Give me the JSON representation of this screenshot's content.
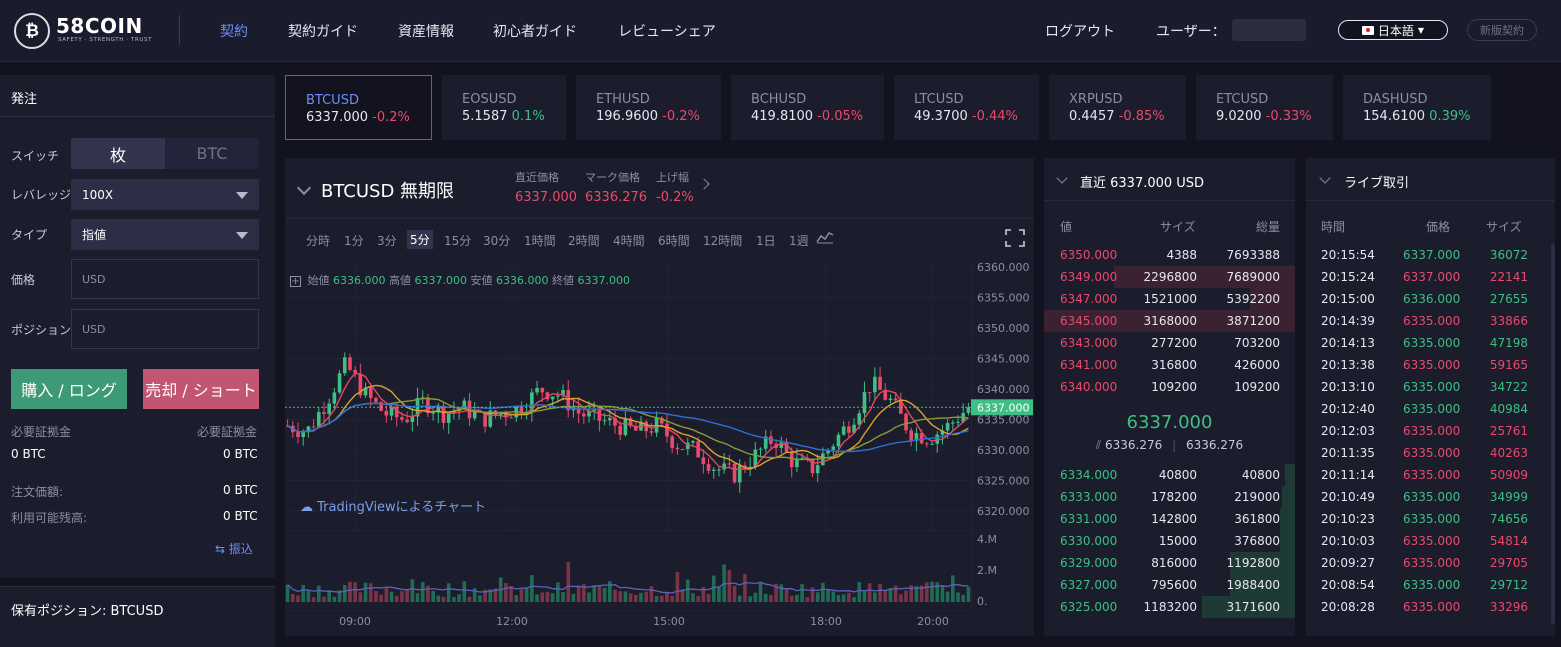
{
  "header": {
    "brand": "58COIN",
    "tagline": "SAFETY · STRENGTH · TRUST",
    "logo_glyph": "₿",
    "nav": [
      "契約",
      "契約ガイド",
      "資産情報",
      "初心者ガイド",
      "レビューシェア"
    ],
    "logout": "ログアウト",
    "user_label": "ユーザー：",
    "language": "日本語",
    "new_version": "新版契約"
  },
  "order_form": {
    "title": "発注",
    "switch_label": "スイッチ",
    "switch_options": [
      "枚",
      "BTC"
    ],
    "leverage_label": "レバレッジ",
    "leverage_value": "100X",
    "type_label": "タイプ",
    "type_value": "指値",
    "price_label": "価格",
    "price_placeholder": "USD",
    "position_label": "ポジション",
    "position_placeholder": "USD",
    "buy_label": "購入 / ロング",
    "sell_label": "売却 / ショート",
    "margin_left_label": "必要証拠金",
    "margin_right_label": "必要証拠金",
    "margin_left_value": "0 BTC",
    "margin_right_value": "0 BTC",
    "order_price_label": "注文価額:",
    "order_price_value": "0 BTC",
    "available_label": "利用可能残高:",
    "available_value": "0 BTC",
    "transfer_label": "振込"
  },
  "positions": {
    "title": "保有ポジション: BTCUSD"
  },
  "tickers": [
    {
      "symbol": "BTCUSD",
      "price": "6337.000",
      "change": "-0.2%",
      "dir": "down",
      "selected": true
    },
    {
      "symbol": "EOSUSD",
      "price": "5.1587",
      "change": "0.1%",
      "dir": "up"
    },
    {
      "symbol": "ETHUSD",
      "price": "196.9600",
      "change": "-0.2%",
      "dir": "down"
    },
    {
      "symbol": "BCHUSD",
      "price": "419.8100",
      "change": "-0.05%",
      "dir": "down"
    },
    {
      "symbol": "LTCUSD",
      "price": "49.3700",
      "change": "-0.44%",
      "dir": "down"
    },
    {
      "symbol": "XRPUSD",
      "price": "0.4457",
      "change": "-0.85%",
      "dir": "down"
    },
    {
      "symbol": "ETCUSD",
      "price": "9.0200",
      "change": "-0.33%",
      "dir": "down"
    },
    {
      "symbol": "DASHUSD",
      "price": "154.6100",
      "change": "0.39%",
      "dir": "up"
    }
  ],
  "chart_panel": {
    "title": "BTCUSD 無期限",
    "last_label": "直近価格",
    "mark_label": "マーク価格",
    "change_label": "上げ幅",
    "last_value": "6337.000",
    "mark_value": "6336.276",
    "change_value": "-0.2%",
    "timeframes": [
      "分時",
      "1分",
      "3分",
      "5分",
      "15分",
      "30分",
      "1時間",
      "2時間",
      "4時間",
      "6時間",
      "12時間",
      "1日",
      "1週"
    ],
    "selected_timeframe": "5分",
    "ohlc": {
      "open_label": "始値",
      "open": "6336.000",
      "high_label": "高値",
      "high": "6337.000",
      "low_label": "安値",
      "low": "6336.000",
      "close_label": "終値",
      "close": "6337.000"
    },
    "price_ticks": [
      "6360.000",
      "6355.000",
      "6350.000",
      "6345.000",
      "6340.000",
      "6335.000",
      "6330.000",
      "6325.000",
      "6320.000"
    ],
    "current_price_tag": "6337.000",
    "volume_ticks": [
      "4.M",
      "2.M",
      "0."
    ],
    "time_ticks": [
      "09:00",
      "12:00",
      "15:00",
      "18:00",
      "20:00"
    ],
    "watermark": "TradingViewによるチャート"
  },
  "chart_data": {
    "type": "candlestick",
    "title": "BTCUSD 無期限",
    "ylim": [
      6320,
      6360
    ],
    "x_ticks": [
      "09:00",
      "12:00",
      "15:00",
      "18:00",
      "20:00"
    ],
    "current_price": 6337.0,
    "approx_close_path": [
      6334,
      6333,
      6338,
      6344,
      6339,
      6336,
      6335,
      6338,
      6336,
      6337,
      6335,
      6336,
      6337,
      6340,
      6339,
      6336,
      6335,
      6334,
      6333,
      6334,
      6331,
      6330,
      6327,
      6326,
      6329,
      6332,
      6328,
      6327,
      6331,
      6335,
      6341,
      6338,
      6333,
      6332,
      6334,
      6337
    ],
    "volume_range": [
      0,
      4000000
    ]
  },
  "order_book": {
    "title": "直近 6337.000 USD",
    "headers": [
      "値",
      "サイズ",
      "総量"
    ],
    "asks": [
      {
        "price": "6350.000",
        "size": "4388",
        "total": "7693388",
        "depth": 0
      },
      {
        "price": "6349.000",
        "size": "2296800",
        "total": "7689000",
        "depth": 0.72
      },
      {
        "price": "6347.000",
        "size": "1521000",
        "total": "5392200",
        "depth": 0.18
      },
      {
        "price": "6345.000",
        "size": "3168000",
        "total": "3871200",
        "depth": 1.0
      },
      {
        "price": "6343.000",
        "size": "277200",
        "total": "703200",
        "depth": 0
      },
      {
        "price": "6341.000",
        "size": "316800",
        "total": "426000",
        "depth": 0
      },
      {
        "price": "6340.000",
        "size": "109200",
        "total": "109200",
        "depth": 0
      }
    ],
    "mid_price": "6337.000",
    "mark_price_a": "6336.276",
    "mark_price_b": "6336.276",
    "bids": [
      {
        "price": "6334.000",
        "size": "40800",
        "total": "40800",
        "depth": 0.04
      },
      {
        "price": "6333.000",
        "size": "178200",
        "total": "219000",
        "depth": 0.05
      },
      {
        "price": "6331.000",
        "size": "142800",
        "total": "361800",
        "depth": 0.06
      },
      {
        "price": "6330.000",
        "size": "15000",
        "total": "376800",
        "depth": 0.06
      },
      {
        "price": "6329.000",
        "size": "816000",
        "total": "1192800",
        "depth": 0.26
      },
      {
        "price": "6327.000",
        "size": "795600",
        "total": "1988400",
        "depth": 0.26
      },
      {
        "price": "6325.000",
        "size": "1183200",
        "total": "3171600",
        "depth": 0.37
      }
    ]
  },
  "live_trades": {
    "title": "ライブ取引",
    "headers": [
      "時間",
      "価格",
      "サイズ"
    ],
    "rows": [
      {
        "time": "20:15:54",
        "price": "6337.000",
        "size": "36072",
        "dir": "up"
      },
      {
        "time": "20:15:24",
        "price": "6337.000",
        "size": "22141",
        "dir": "down"
      },
      {
        "time": "20:15:00",
        "price": "6336.000",
        "size": "27655",
        "dir": "up"
      },
      {
        "time": "20:14:39",
        "price": "6335.000",
        "size": "33866",
        "dir": "down"
      },
      {
        "time": "20:14:13",
        "price": "6335.000",
        "size": "47198",
        "dir": "up"
      },
      {
        "time": "20:13:38",
        "price": "6335.000",
        "size": "59165",
        "dir": "down"
      },
      {
        "time": "20:13:10",
        "price": "6335.000",
        "size": "34722",
        "dir": "up"
      },
      {
        "time": "20:12:40",
        "price": "6335.000",
        "size": "40984",
        "dir": "up"
      },
      {
        "time": "20:12:03",
        "price": "6335.000",
        "size": "25761",
        "dir": "down"
      },
      {
        "time": "20:11:35",
        "price": "6335.000",
        "size": "40263",
        "dir": "down"
      },
      {
        "time": "20:11:14",
        "price": "6335.000",
        "size": "50909",
        "dir": "down"
      },
      {
        "time": "20:10:49",
        "price": "6335.000",
        "size": "34999",
        "dir": "up"
      },
      {
        "time": "20:10:23",
        "price": "6335.000",
        "size": "74656",
        "dir": "up"
      },
      {
        "time": "20:10:03",
        "price": "6335.000",
        "size": "54814",
        "dir": "down"
      },
      {
        "time": "20:09:27",
        "price": "6335.000",
        "size": "29705",
        "dir": "down"
      },
      {
        "time": "20:08:54",
        "price": "6335.000",
        "size": "29712",
        "dir": "up"
      },
      {
        "time": "20:08:28",
        "price": "6335.000",
        "size": "33296",
        "dir": "down"
      }
    ]
  },
  "colors": {
    "up": "#3dbf85",
    "down": "#ea4a6a",
    "accent": "#6d8ef5",
    "buy": "#3d9a77",
    "sell": "#c25572"
  }
}
